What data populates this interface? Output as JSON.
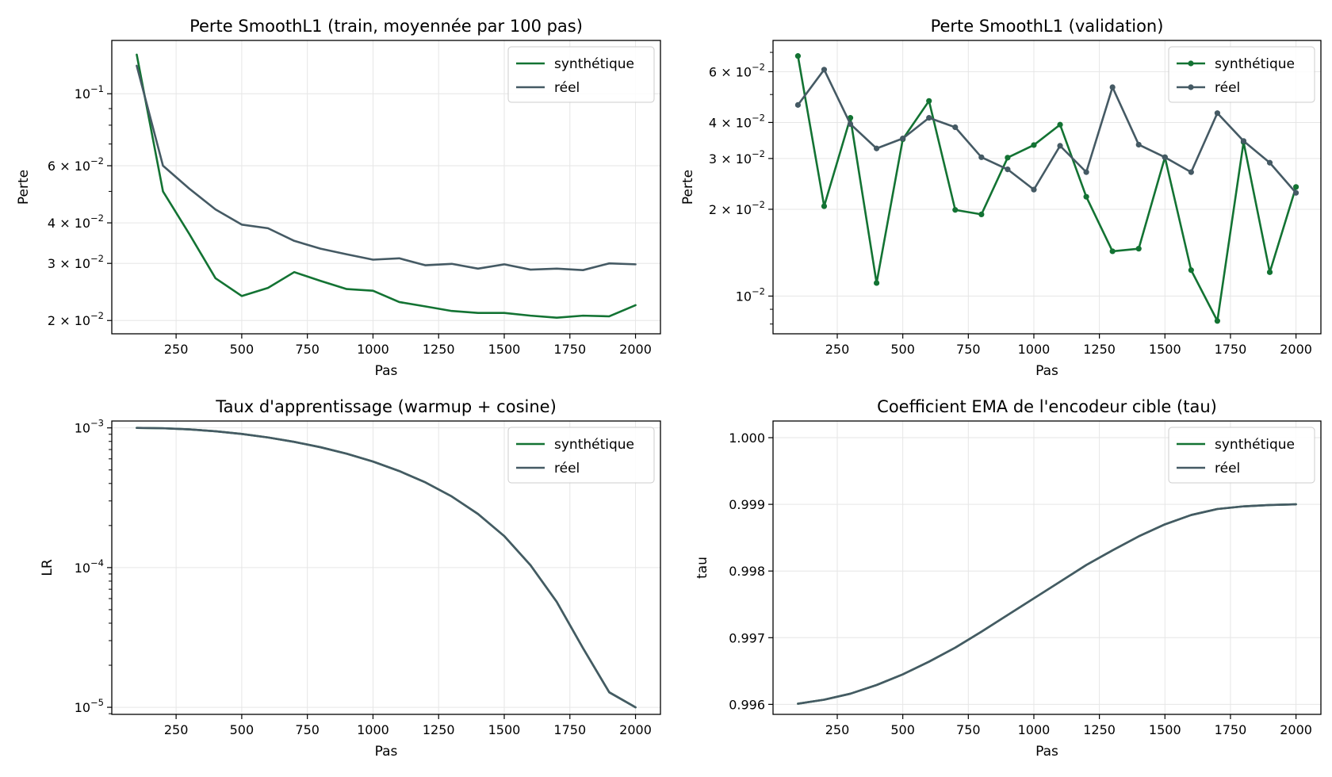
{
  "colors": {
    "synthetique": "#137333",
    "reel": "#455a64",
    "grid": "#e6e6e6"
  },
  "chart_data": [
    {
      "type": "line",
      "title": "Perte SmoothL1 (train, moyennée par 100 pas)",
      "xlabel": "Pas",
      "ylabel": "Perte",
      "yscale": "log",
      "xlim": [
        5,
        2095
      ],
      "ylim": [
        0.0182,
        0.146
      ],
      "grid": true,
      "legend": "top-right",
      "markers": false,
      "xticks": [
        250,
        500,
        750,
        1000,
        1250,
        1500,
        1750,
        2000
      ],
      "yticks": [
        {
          "value": 0.1,
          "mant": "",
          "exp": "−1"
        },
        {
          "value": 0.06,
          "mant": "6 × ",
          "exp": "−2"
        },
        {
          "value": 0.04,
          "mant": "4 × ",
          "exp": "−2"
        },
        {
          "value": 0.03,
          "mant": "3 × ",
          "exp": "−2"
        },
        {
          "value": 0.02,
          "mant": "2 × ",
          "exp": "−2"
        }
      ],
      "x": [
        100,
        200,
        300,
        400,
        500,
        600,
        700,
        800,
        900,
        1000,
        1100,
        1200,
        1300,
        1400,
        1500,
        1600,
        1700,
        1800,
        1900,
        2000
      ],
      "series": [
        {
          "name": "synthétique",
          "color": "#137333",
          "values": [
            0.132,
            0.05,
            0.037,
            0.027,
            0.0238,
            0.0252,
            0.0282,
            0.0265,
            0.025,
            0.0247,
            0.0228,
            0.0221,
            0.0214,
            0.0211,
            0.0211,
            0.0207,
            0.0204,
            0.0207,
            0.0206,
            0.0223
          ]
        },
        {
          "name": "réel",
          "color": "#455a64",
          "values": [
            0.122,
            0.06,
            0.051,
            0.044,
            0.0395,
            0.0385,
            0.0352,
            0.0333,
            0.032,
            0.0308,
            0.0311,
            0.0296,
            0.0299,
            0.0289,
            0.0298,
            0.0287,
            0.0289,
            0.0286,
            0.03,
            0.0298
          ]
        }
      ]
    },
    {
      "type": "line",
      "title": "Perte SmoothL1 (validation)",
      "xlabel": "Pas",
      "ylabel": "Perte",
      "yscale": "log",
      "xlim": [
        5,
        2095
      ],
      "ylim": [
        0.0074,
        0.077
      ],
      "grid": true,
      "legend": "top-right",
      "markers": true,
      "xticks": [
        250,
        500,
        750,
        1000,
        1250,
        1500,
        1750,
        2000
      ],
      "yticks": [
        {
          "value": 0.06,
          "mant": "6 × ",
          "exp": "−2"
        },
        {
          "value": 0.04,
          "mant": "4 × ",
          "exp": "−2"
        },
        {
          "value": 0.03,
          "mant": "3 × ",
          "exp": "−2"
        },
        {
          "value": 0.02,
          "mant": "2 × ",
          "exp": "−2"
        },
        {
          "value": 0.01,
          "mant": "",
          "exp": "−2"
        }
      ],
      "x": [
        100,
        200,
        300,
        400,
        500,
        600,
        700,
        800,
        900,
        1000,
        1100,
        1200,
        1300,
        1400,
        1500,
        1600,
        1700,
        1800,
        1900,
        2000
      ],
      "series": [
        {
          "name": "synthétique",
          "color": "#137333",
          "values": [
            0.068,
            0.0205,
            0.0415,
            0.0111,
            0.035,
            0.0475,
            0.0199,
            0.0192,
            0.0302,
            0.0334,
            0.0393,
            0.0221,
            0.0143,
            0.0146,
            0.0303,
            0.0123,
            0.0082,
            0.0342,
            0.0121,
            0.0239
          ]
        },
        {
          "name": "réel",
          "color": "#455a64",
          "values": [
            0.046,
            0.061,
            0.0395,
            0.0325,
            0.0352,
            0.0415,
            0.0385,
            0.0303,
            0.0275,
            0.0234,
            0.0332,
            0.0269,
            0.053,
            0.0335,
            0.0303,
            0.0269,
            0.0431,
            0.0345,
            0.029,
            0.0228
          ]
        }
      ]
    },
    {
      "type": "line",
      "title": "Taux d'apprentissage (warmup + cosine)",
      "xlabel": "Pas",
      "ylabel": "LR",
      "yscale": "log",
      "xlim": [
        5,
        2095
      ],
      "ylim": [
        8.9e-06,
        0.00112
      ],
      "grid": true,
      "legend": "top-right",
      "markers": false,
      "xticks": [
        250,
        500,
        750,
        1000,
        1250,
        1500,
        1750,
        2000
      ],
      "yticks": [
        {
          "value": 0.001,
          "mant": "",
          "exp": "−3"
        },
        {
          "value": 0.0001,
          "mant": "",
          "exp": "−4"
        },
        {
          "value": 1e-05,
          "mant": "",
          "exp": "−5"
        }
      ],
      "x": [
        100,
        200,
        300,
        400,
        500,
        600,
        700,
        800,
        900,
        1000,
        1100,
        1200,
        1300,
        1400,
        1500,
        1600,
        1700,
        1800,
        1900,
        2000
      ],
      "series": [
        {
          "name": "synthétique",
          "color": "#137333",
          "values": [
            0.001,
            0.000994,
            0.000976,
            0.000946,
            0.000905,
            0.000854,
            0.000794,
            0.000727,
            0.000653,
            0.000574,
            0.000491,
            0.000407,
            0.000323,
            0.000242,
            0.000168,
            0.000104,
            5.68e-05,
            2.65e-05,
            1.28e-05,
            1e-05
          ]
        },
        {
          "name": "réel",
          "color": "#455a64",
          "values": [
            0.001,
            0.000994,
            0.000976,
            0.000946,
            0.000905,
            0.000854,
            0.000794,
            0.000727,
            0.000653,
            0.000574,
            0.000491,
            0.000407,
            0.000323,
            0.000242,
            0.000168,
            0.000104,
            5.68e-05,
            2.65e-05,
            1.28e-05,
            1e-05
          ]
        }
      ]
    },
    {
      "type": "line",
      "title": "Coefficient EMA de l'encodeur cible (tau)",
      "xlabel": "Pas",
      "ylabel": "tau",
      "yscale": "linear",
      "xlim": [
        5,
        2095
      ],
      "ylim": [
        0.99585,
        1.00025
      ],
      "grid": true,
      "legend": "top-right",
      "markers": false,
      "xticks": [
        250,
        500,
        750,
        1000,
        1250,
        1500,
        1750,
        2000
      ],
      "yticks": [
        {
          "value": 1.0,
          "label": "1.000"
        },
        {
          "value": 0.999,
          "label": "0.999"
        },
        {
          "value": 0.998,
          "label": "0.998"
        },
        {
          "value": 0.997,
          "label": "0.997"
        },
        {
          "value": 0.996,
          "label": "0.996"
        }
      ],
      "x": [
        100,
        200,
        300,
        400,
        500,
        600,
        700,
        800,
        900,
        1000,
        1100,
        1200,
        1300,
        1400,
        1500,
        1600,
        1700,
        1800,
        1900,
        2000
      ],
      "series": [
        {
          "name": "synthétique",
          "color": "#137333",
          "values": [
            0.99601,
            0.99607,
            0.99616,
            0.99629,
            0.99645,
            0.99664,
            0.99685,
            0.99709,
            0.99734,
            0.99759,
            0.99784,
            0.99809,
            0.99831,
            0.99852,
            0.9987,
            0.99884,
            0.99893,
            0.99897,
            0.99899,
            0.999
          ]
        },
        {
          "name": "réel",
          "color": "#455a64",
          "values": [
            0.99601,
            0.99607,
            0.99616,
            0.99629,
            0.99645,
            0.99664,
            0.99685,
            0.99709,
            0.99734,
            0.99759,
            0.99784,
            0.99809,
            0.99831,
            0.99852,
            0.9987,
            0.99884,
            0.99893,
            0.99897,
            0.99899,
            0.999
          ]
        }
      ]
    }
  ]
}
